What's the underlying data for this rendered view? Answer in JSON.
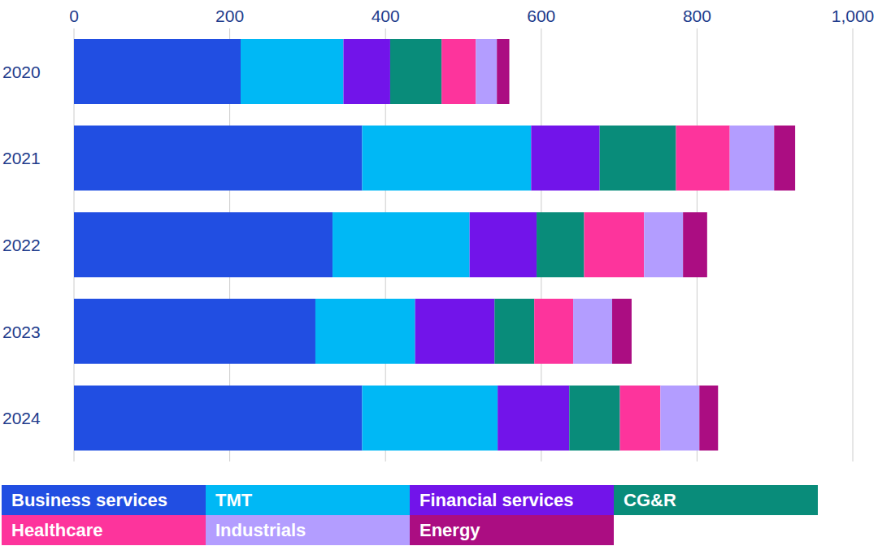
{
  "chart_data": {
    "type": "bar",
    "orientation": "horizontal",
    "stacked": true,
    "grid": true,
    "legend": "bottom",
    "categories": [
      "2020",
      "2021",
      "2022",
      "2023",
      "2024"
    ],
    "xlim": [
      0,
      1000
    ],
    "xticks": [
      0,
      200,
      400,
      600,
      800,
      {
        "value": 1000,
        "label": "1,000"
      }
    ],
    "series": [
      {
        "name": "Business services",
        "color": "#214ee2",
        "values": [
          214,
          370,
          332,
          310,
          370
        ]
      },
      {
        "name": "TMT",
        "color": "#00b8f5",
        "values": [
          132,
          217,
          176,
          128,
          174
        ]
      },
      {
        "name": "Financial services",
        "color": "#7214ea",
        "values": [
          60,
          88,
          86,
          102,
          92
        ]
      },
      {
        "name": "CG&R",
        "color": "#098c7a",
        "values": [
          66,
          98,
          61,
          51,
          65
        ]
      },
      {
        "name": "Healthcare",
        "color": "#fd349c",
        "values": [
          44,
          69,
          77,
          50,
          52
        ]
      },
      {
        "name": "Industrials",
        "color": "#b39dff",
        "values": [
          27,
          57,
          50,
          50,
          50
        ]
      },
      {
        "name": "Energy",
        "color": "#ab0d82",
        "values": [
          16,
          27,
          31,
          25,
          24
        ]
      }
    ]
  }
}
